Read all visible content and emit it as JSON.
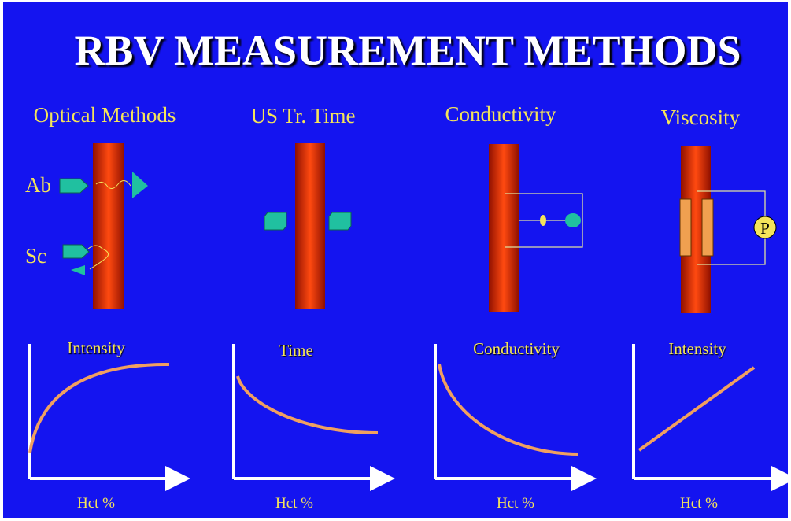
{
  "title": "RBV MEASUREMENT METHODS",
  "methods": [
    {
      "heading": "Optical Methods",
      "labels": [
        "Ab",
        "Sc"
      ],
      "graph": {
        "y_label": "Intensity",
        "x_label": "Hct %"
      }
    },
    {
      "heading": "US Tr. Time",
      "graph": {
        "y_label": "Time",
        "x_label": "Hct %"
      }
    },
    {
      "heading": "Conductivity",
      "graph": {
        "y_label": "Conductivity",
        "x_label": "Hct %"
      }
    },
    {
      "heading": "Viscosity",
      "symbol": "P",
      "graph": {
        "y_label": "Intensity",
        "x_label": "Hct %"
      }
    }
  ]
}
